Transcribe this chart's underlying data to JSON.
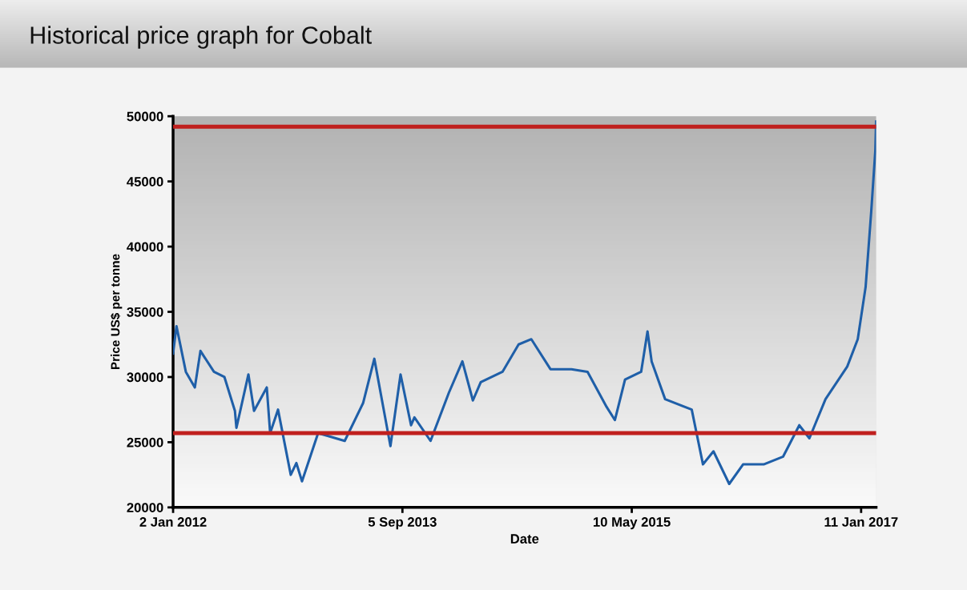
{
  "chart_data": {
    "type": "line",
    "title": "Historical price graph for Cobalt",
    "xlabel": "Date",
    "ylabel": "Price US$ per tonne",
    "series": [
      {
        "color": "#1f5fa8",
        "x": [
          "2012-01-02",
          "2012-01-11",
          "2012-02-05",
          "2012-02-29",
          "2012-03-15",
          "2012-04-20",
          "2012-05-18",
          "2012-06-15",
          "2012-06-19",
          "2012-07-21",
          "2012-08-05",
          "2012-09-08",
          "2012-09-17",
          "2012-10-08",
          "2012-11-11",
          "2012-11-26",
          "2012-12-11",
          "2013-01-23",
          "2013-04-04",
          "2013-05-23",
          "2013-06-22",
          "2013-08-04",
          "2013-08-31",
          "2013-09-28",
          "2013-10-07",
          "2013-11-19",
          "2014-01-07",
          "2014-02-12",
          "2014-03-12",
          "2014-04-02",
          "2014-05-30",
          "2014-07-12",
          "2014-08-15",
          "2014-10-05",
          "2014-11-30",
          "2015-01-12",
          "2015-03-04",
          "2015-03-26",
          "2015-04-22",
          "2015-06-04",
          "2015-06-21",
          "2015-07-02",
          "2015-08-07",
          "2015-10-17",
          "2015-11-16",
          "2015-12-14",
          "2016-01-25",
          "2016-03-02",
          "2016-04-26",
          "2016-06-17",
          "2016-07-30",
          "2016-08-26",
          "2016-10-08",
          "2016-12-05",
          "2017-01-02",
          "2017-01-23",
          "2017-02-07",
          "2017-02-18",
          "2017-02-20"
        ],
        "values": [
          31800,
          33900,
          30400,
          29200,
          32000,
          30400,
          30000,
          27400,
          26100,
          30200,
          27400,
          29200,
          25700,
          27500,
          22500,
          23400,
          22000,
          25700,
          25100,
          28000,
          31400,
          24700,
          30200,
          26300,
          26900,
          25100,
          28800,
          31200,
          28200,
          29600,
          30400,
          32500,
          32900,
          30600,
          30600,
          30400,
          27700,
          26700,
          29800,
          30400,
          33500,
          31200,
          28300,
          27500,
          23300,
          24300,
          21800,
          23300,
          23300,
          23900,
          26300,
          25300,
          28300,
          30800,
          32900,
          36900,
          42700,
          47400,
          49600
        ]
      }
    ],
    "xlim": [
      "2012-01-02",
      "2017-02-20"
    ],
    "xticks": [
      {
        "value": "2012-01-02",
        "label": "2 Jan 2012"
      },
      {
        "value": "2013-09-05",
        "label": "5 Sep 2013"
      },
      {
        "value": "2015-05-10",
        "label": "10 May 2015"
      },
      {
        "value": "2017-01-11",
        "label": "11 Jan 2017"
      }
    ],
    "ylim": [
      20000,
      50000
    ],
    "yticks": [
      20000,
      25000,
      30000,
      35000,
      40000,
      45000,
      50000
    ],
    "ref_lines": [
      {
        "axis": "y",
        "value": 49200,
        "color": "#c0201e"
      },
      {
        "axis": "y",
        "value": 25700,
        "color": "#c0201e"
      }
    ],
    "grid": false
  }
}
